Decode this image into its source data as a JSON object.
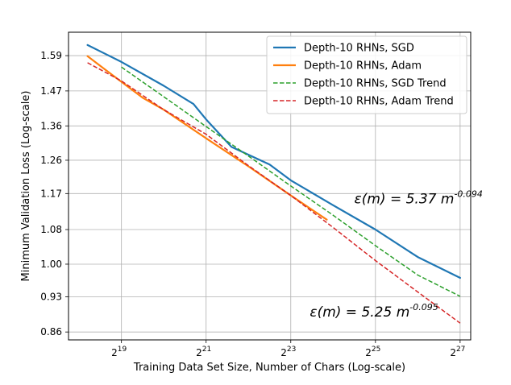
{
  "chart_data": {
    "type": "line",
    "title": "",
    "xlabel": "Training Data Set Size, Number of Chars (Log-scale)",
    "ylabel": "Minimum Validation Loss (Log-scale)",
    "x_scale": "log2",
    "y_scale": "log",
    "xlim_log2": [
      17.75,
      27.25
    ],
    "ylim": [
      0.845,
      1.675
    ],
    "x_ticks": [
      {
        "exp": 19,
        "base": "2",
        "sup": "19"
      },
      {
        "exp": 21,
        "base": "2",
        "sup": "21"
      },
      {
        "exp": 23,
        "base": "2",
        "sup": "23"
      },
      {
        "exp": 25,
        "base": "2",
        "sup": "25"
      },
      {
        "exp": 27,
        "base": "2",
        "sup": "27"
      }
    ],
    "y_ticks": [
      {
        "value": 0.86,
        "label": "0.86"
      },
      {
        "value": 0.93,
        "label": "0.93"
      },
      {
        "value": 1.0,
        "label": "1.00"
      },
      {
        "value": 1.08,
        "label": "1.08"
      },
      {
        "value": 1.17,
        "label": "1.17"
      },
      {
        "value": 1.26,
        "label": "1.26"
      },
      {
        "value": 1.36,
        "label": "1.36"
      },
      {
        "value": 1.47,
        "label": "1.47"
      },
      {
        "value": 1.59,
        "label": "1.59"
      }
    ],
    "grid": true,
    "legend_position": "top-right",
    "series": [
      {
        "name": "Depth-10 RHNs, SGD",
        "color": "#1f77b4",
        "style": "solid",
        "x_log2": [
          18.2,
          19.0,
          20.0,
          20.7,
          21.0,
          21.6,
          22.5,
          23.0,
          24.0,
          25.0,
          26.0,
          27.0
        ],
        "values": [
          1.628,
          1.568,
          1.487,
          1.428,
          1.38,
          1.298,
          1.248,
          1.205,
          1.14,
          1.08,
          1.016,
          0.97
        ]
      },
      {
        "name": "Depth-10 RHNs, Adam",
        "color": "#ff7f0e",
        "style": "solid",
        "x_log2": [
          18.2,
          19.0,
          19.5,
          20.0,
          21.0,
          22.0,
          23.0,
          23.85
        ],
        "values": [
          1.588,
          1.5,
          1.448,
          1.41,
          1.323,
          1.243,
          1.165,
          1.104
        ]
      },
      {
        "name": "Depth-10 RHNs, SGD Trend",
        "color": "#2ca02c",
        "style": "dashed",
        "x_log2": [
          19.0,
          20.0,
          21.0,
          22.0,
          23.0,
          24.0,
          25.0,
          26.0,
          27.0
        ],
        "values": [
          1.55,
          1.451,
          1.358,
          1.272,
          1.19,
          1.115,
          1.042,
          0.976,
          0.931
        ]
      },
      {
        "name": "Depth-10 RHNs, Adam Trend",
        "color": "#d62728",
        "style": "dashed",
        "x_log2": [
          18.2,
          19.0,
          20.0,
          21.0,
          22.0,
          23.0,
          24.0,
          25.0,
          26.0,
          27.0
        ],
        "values": [
          1.565,
          1.503,
          1.41,
          1.335,
          1.245,
          1.165,
          1.085,
          1.008,
          0.94,
          0.877
        ]
      }
    ],
    "annotations": [
      {
        "id": "sgd",
        "x_log2": 24.5,
        "y": 1.145,
        "prefix": "ε(m) = 5.37 m",
        "sup": "-0.094"
      },
      {
        "id": "adam",
        "x_log2": 23.45,
        "y": 0.89,
        "prefix": "ε(m) = 5.25 m",
        "sup": "-0.095"
      }
    ]
  }
}
